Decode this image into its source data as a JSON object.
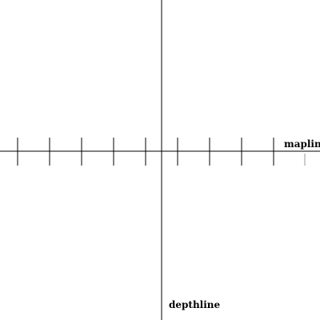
{
  "diagram": {
    "horizontal_axis": {
      "label": "mapline",
      "color": "#000000"
    },
    "vertical_axis": {
      "label": "depthline",
      "color": "#000000"
    },
    "tick_color": "#000000",
    "faint_tick_color": "#999999",
    "background": "#ffffff"
  }
}
